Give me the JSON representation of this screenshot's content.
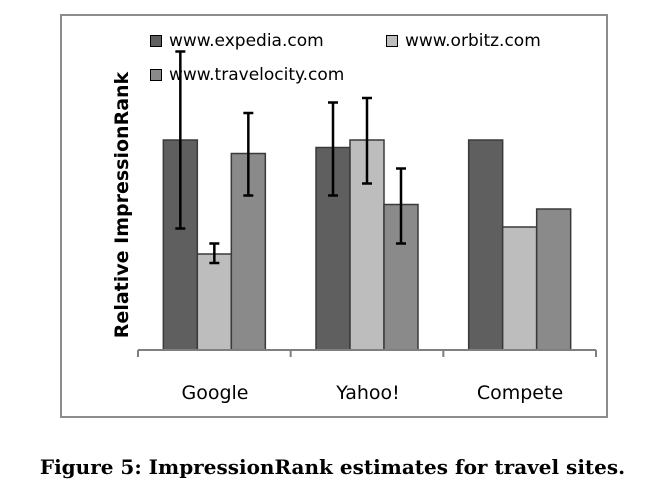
{
  "caption": "Figure 5: ImpressionRank estimates for travel sites.",
  "chart_data": {
    "type": "bar",
    "title": "",
    "xlabel": "",
    "ylabel": "Relative ImpressionRank",
    "categories": [
      "Google",
      "Yahoo!",
      "Compete"
    ],
    "ylim": [
      0,
      100
    ],
    "grid": false,
    "legend_position": "top",
    "series": [
      {
        "name": "www.expedia.com",
        "color": "#5f5f5f",
        "values": [
          70,
          67.5,
          70
        ],
        "error": [
          [
            40.5,
            99.5
          ],
          [
            51.5,
            82.5
          ],
          null
        ]
      },
      {
        "name": "www.orbitz.com",
        "color": "#bdbdbd",
        "values": [
          32,
          70,
          41
        ],
        "error": [
          [
            29,
            35.5
          ],
          [
            55.5,
            84
          ],
          null
        ]
      },
      {
        "name": "www.travelocity.com",
        "color": "#8a8a8a",
        "values": [
          65.5,
          48.5,
          47
        ],
        "error": [
          [
            51.5,
            79
          ],
          [
            35.5,
            60.5
          ],
          null
        ]
      }
    ]
  }
}
